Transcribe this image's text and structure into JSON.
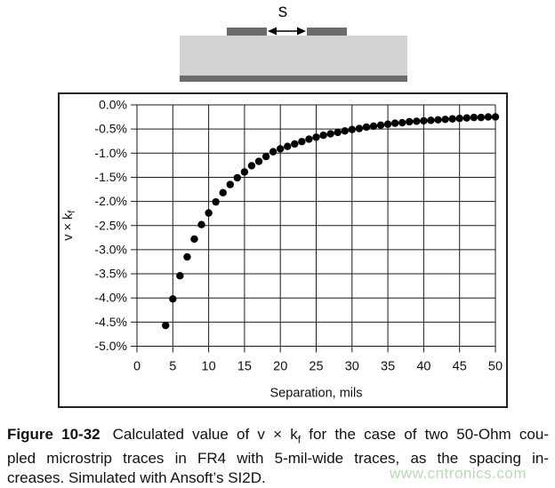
{
  "diagram": {
    "spacing_label": "s"
  },
  "colors": {
    "trace_gray": "#6b6b6b",
    "substrate_gray": "#d3d3d3",
    "watermark_green": "#b6ddb1",
    "dot_black": "#000000",
    "grid_line": "#1c1c1c"
  },
  "chart_data": {
    "type": "scatter",
    "title": "",
    "xlabel": "Separation, mils",
    "ylabel_main": "v × k",
    "ylabel_sub": "f",
    "xlim": [
      0,
      50
    ],
    "ylim": [
      -5,
      0
    ],
    "grid": true,
    "legend": "none",
    "xticks": [
      0,
      5,
      10,
      15,
      20,
      25,
      30,
      35,
      40,
      45,
      50
    ],
    "ytick_labels": [
      "0.0%",
      "-0.5%",
      "-1.0%",
      "-1.5%",
      "-2.0%",
      "-2.5%",
      "-3.0%",
      "-3.5%",
      "-4.0%",
      "-4.5%",
      "-5.0%"
    ],
    "x": [
      4,
      5,
      6,
      7,
      8,
      9,
      10,
      11,
      12,
      13,
      14,
      15,
      16,
      17,
      18,
      19,
      20,
      21,
      22,
      23,
      24,
      25,
      26,
      27,
      28,
      29,
      30,
      31,
      32,
      33,
      34,
      35,
      36,
      37,
      38,
      39,
      40,
      41,
      42,
      43,
      44,
      45,
      46,
      47,
      48,
      49,
      50
    ],
    "y": [
      -4.57,
      -4.02,
      -3.54,
      -3.15,
      -2.78,
      -2.48,
      -2.24,
      -2.01,
      -1.82,
      -1.65,
      -1.51,
      -1.39,
      -1.26,
      -1.17,
      -1.07,
      -0.97,
      -0.91,
      -0.86,
      -0.81,
      -0.76,
      -0.71,
      -0.67,
      -0.63,
      -0.6,
      -0.57,
      -0.54,
      -0.51,
      -0.49,
      -0.46,
      -0.44,
      -0.42,
      -0.4,
      -0.38,
      -0.37,
      -0.35,
      -0.34,
      -0.33,
      -0.32,
      -0.31,
      -0.3,
      -0.29,
      -0.28,
      -0.27,
      -0.26,
      -0.26,
      -0.25,
      -0.25
    ]
  },
  "caption": {
    "figure_label": "Figure 10-32",
    "line1_pre_sub": "Calculated value of v × k",
    "sub": "f",
    "line1_post_sub": " for the case of two 50-Ohm cou-",
    "line2": "pled microstrip traces in FR4 with 5-mil-wide traces, as the spacing in-",
    "line3": "creases. Simulated with Ansoft’s SI2D."
  },
  "watermark": {
    "text": "www.cntronics.com"
  }
}
